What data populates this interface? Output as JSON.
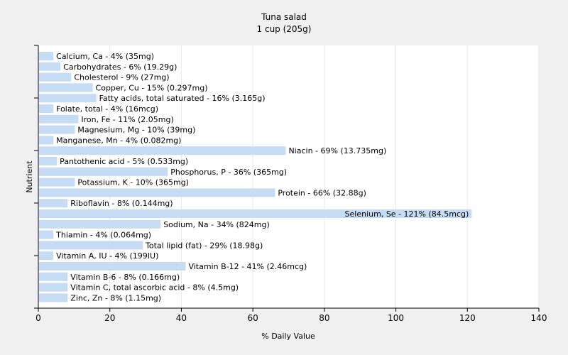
{
  "chart_data": {
    "type": "bar",
    "orientation": "horizontal",
    "title": "Tuna salad",
    "subtitle": "1 cup (205g)",
    "xlabel": "% Daily Value",
    "ylabel": "Nutrient",
    "xlim": [
      0,
      140
    ],
    "xticks": [
      0,
      20,
      40,
      60,
      80,
      100,
      120,
      140
    ],
    "grid": true,
    "bar_color": "#c6dcf5",
    "background": "#f0f0f0",
    "plot_background": "#ffffff",
    "grid_color": "#e8e8e8",
    "categories": [
      "Calcium, Ca",
      "Carbohydrates",
      "Cholesterol",
      "Copper, Cu",
      "Fatty acids, total saturated",
      "Folate, total",
      "Iron, Fe",
      "Magnesium, Mg",
      "Manganese, Mn",
      "Niacin",
      "Pantothenic acid",
      "Phosphorus, P",
      "Potassium, K",
      "Protein",
      "Riboflavin",
      "Selenium, Se",
      "Sodium, Na",
      "Thiamin",
      "Total lipid (fat)",
      "Vitamin A, IU",
      "Vitamin B-12",
      "Vitamin B-6",
      "Vitamin C, total ascorbic acid",
      "Zinc, Zn"
    ],
    "values": [
      4,
      6,
      9,
      15,
      16,
      4,
      11,
      10,
      4,
      69,
      5,
      36,
      10,
      66,
      8,
      121,
      34,
      4,
      29,
      4,
      41,
      8,
      8,
      8
    ],
    "labels": [
      "Calcium, Ca - 4% (35mg)",
      "Carbohydrates - 6% (19.29g)",
      "Cholesterol - 9% (27mg)",
      "Copper, Cu - 15% (0.297mg)",
      "Fatty acids, total saturated - 16% (3.165g)",
      "Folate, total - 4% (16mcg)",
      "Iron, Fe - 11% (2.05mg)",
      "Magnesium, Mg - 10% (39mg)",
      "Manganese, Mn - 4% (0.082mg)",
      "Niacin - 69% (13.735mg)",
      "Pantothenic acid - 5% (0.533mg)",
      "Phosphorus, P - 36% (365mg)",
      "Potassium, K - 10% (365mg)",
      "Protein - 66% (32.88g)",
      "Riboflavin - 8% (0.144mg)",
      "Selenium, Se - 121% (84.5mcg)",
      "Sodium, Na - 34% (824mg)",
      "Thiamin - 4% (0.064mg)",
      "Total lipid (fat) - 29% (18.98g)",
      "Vitamin A, IU - 4% (199IU)",
      "Vitamin B-12 - 41% (2.46mcg)",
      "Vitamin B-6 - 8% (0.166mg)",
      "Vitamin C, total ascorbic acid - 8% (4.5mg)",
      "Zinc, Zn - 8% (1.15mg)"
    ]
  }
}
